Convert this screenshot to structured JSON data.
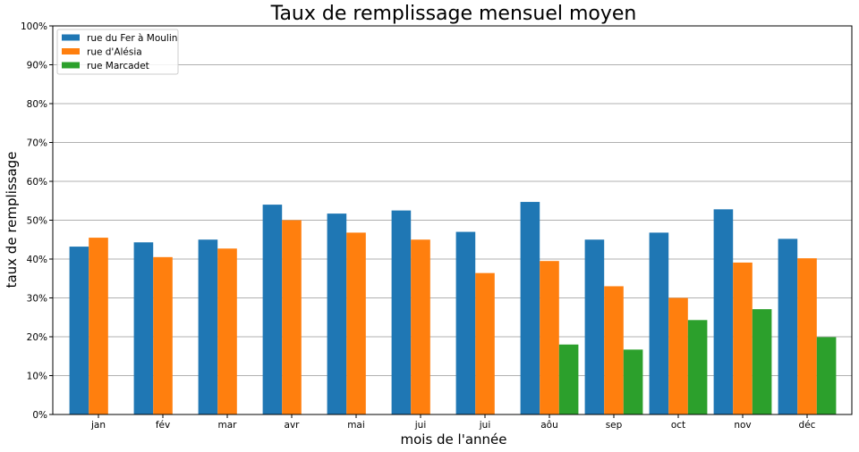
{
  "chart_data": {
    "type": "bar",
    "title": "Taux de remplissage mensuel moyen",
    "xlabel": "mois de l'année",
    "ylabel": "taux de remplissage",
    "categories": [
      "jan",
      "fév",
      "mar",
      "avr",
      "mai",
      "jui",
      "jui",
      "aôu",
      "sep",
      "oct",
      "nov",
      "déc"
    ],
    "ylim": [
      0,
      100
    ],
    "yticks": [
      "0%",
      "10%",
      "20%",
      "30%",
      "40%",
      "50%",
      "60%",
      "70%",
      "80%",
      "90%",
      "100%"
    ],
    "grid": "horizontal",
    "legend_position": "top-left",
    "series": [
      {
        "name": "rue du Fer à Moulin",
        "color": "#1f77b4",
        "values": [
          43.2,
          44.3,
          45.0,
          54.0,
          51.7,
          52.5,
          47.0,
          54.7,
          45.0,
          46.8,
          52.8,
          45.2
        ]
      },
      {
        "name": "rue d'Alésia",
        "color": "#ff7f0e",
        "values": [
          45.5,
          40.5,
          42.7,
          50.0,
          46.8,
          45.0,
          36.4,
          39.5,
          33.0,
          30.0,
          39.1,
          40.2
        ]
      },
      {
        "name": "rue Marcadet",
        "color": "#2ca02c",
        "values": [
          null,
          null,
          null,
          null,
          null,
          null,
          null,
          18.0,
          16.7,
          24.3,
          27.1,
          19.9
        ]
      }
    ]
  }
}
